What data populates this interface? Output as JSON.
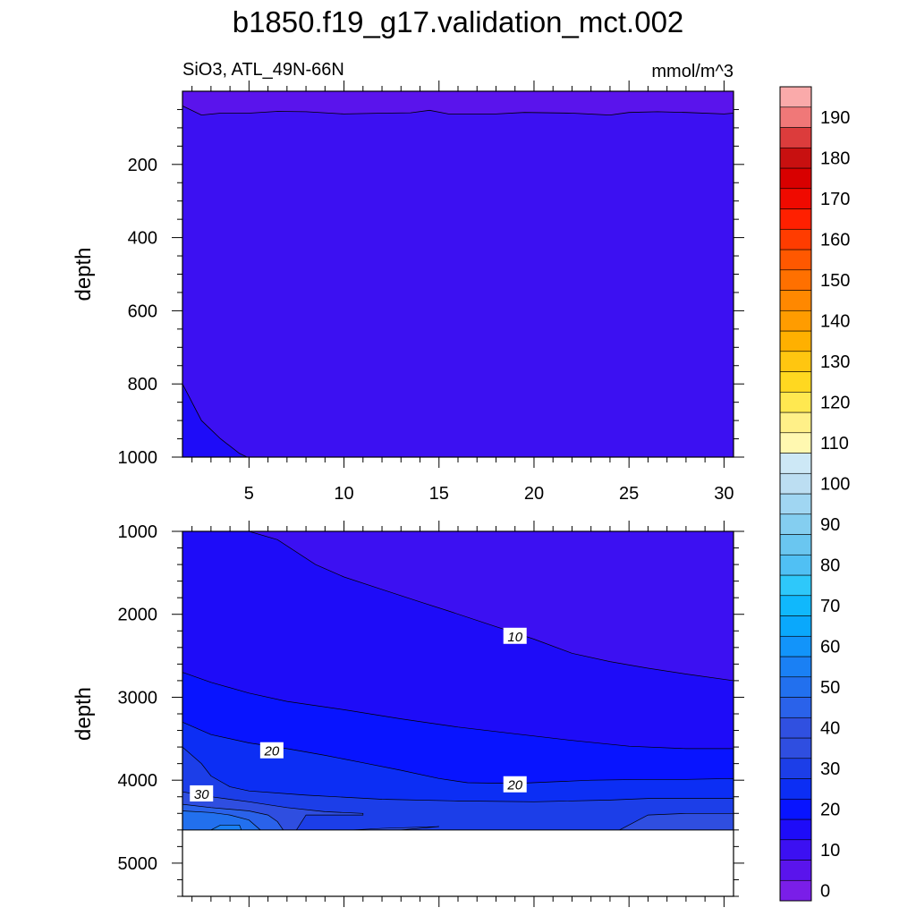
{
  "title": "b1850.f19_g17.validation_mct.002",
  "subtitle_left": "SiO3, ATL_49N-66N",
  "subtitle_right": "mmol/m^3",
  "chart_data": [
    {
      "type": "heatmap",
      "panel": "top",
      "ylabel": "depth",
      "xlim": [
        1.5,
        30.5
      ],
      "ylim": [
        0,
        1000
      ],
      "y_inverted": true,
      "xticks": [
        "5",
        "10",
        "15",
        "20",
        "25",
        "30"
      ],
      "yticks": [
        "200",
        "400",
        "600",
        "800",
        "1000"
      ],
      "contour_labels": []
    },
    {
      "type": "heatmap",
      "panel": "bottom",
      "ylabel": "depth",
      "xlim": [
        1.5,
        30.5
      ],
      "ylim": [
        1000,
        5400
      ],
      "y_inverted": true,
      "no_data_below_depth": 4600,
      "xticks": [],
      "yticks": [
        "1000",
        "2000",
        "3000",
        "4000",
        "5000"
      ],
      "contour_labels": [
        {
          "text": "10",
          "x": 19,
          "y": 2270
        },
        {
          "text": "20",
          "x": 6.2,
          "y": 3650
        },
        {
          "text": "20",
          "x": 19,
          "y": 4060
        },
        {
          "text": "30",
          "x": 2.5,
          "y": 4170
        }
      ]
    }
  ],
  "colorbar": {
    "labels": [
      "0",
      "10",
      "20",
      "30",
      "40",
      "50",
      "60",
      "70",
      "80",
      "90",
      "100",
      "110",
      "120",
      "130",
      "140",
      "150",
      "160",
      "170",
      "180",
      "190"
    ],
    "colors": [
      "#7a1ee8",
      "#5a14ec",
      "#3c10f2",
      "#1e0cf8",
      "#0814ff",
      "#0c2ef4",
      "#1c3ee8",
      "#2f4ee0",
      "#3050e0",
      "#2a62ea",
      "#2270ee",
      "#1a80f4",
      "#1294fa",
      "#0aa8fc",
      "#10b8fc",
      "#2ec8fa",
      "#50c0f4",
      "#6ac6f0",
      "#84cef0",
      "#a0d6f2",
      "#bcdeF2",
      "#cde8f6",
      "#fff8b0",
      "#fff088",
      "#ffe850",
      "#ffd820",
      "#ffc610",
      "#ffb000",
      "#ff9c00",
      "#ff8800",
      "#ff7000",
      "#ff5800",
      "#ff3c00",
      "#ff2000",
      "#f00a00",
      "#d80000",
      "#c81010",
      "#dc3c3c",
      "#f07878",
      "#faaaaa"
    ],
    "lowest_label": "0",
    "highest_label": "190"
  }
}
